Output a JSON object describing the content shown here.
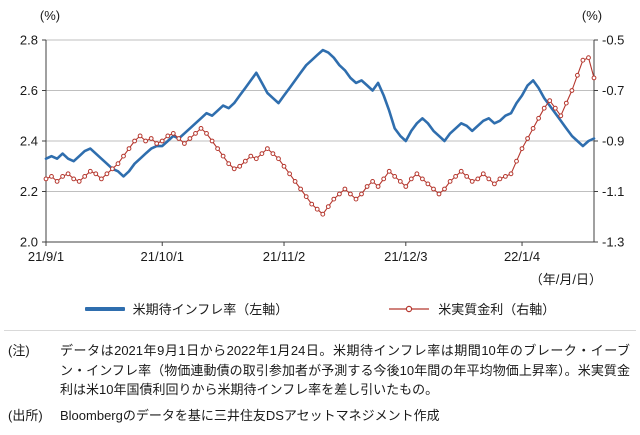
{
  "chart_data": {
    "type": "line",
    "x_unit_label": "（年/月/日）",
    "x_tick_labels": [
      "21/9/1",
      "21/10/1",
      "21/11/2",
      "21/12/3",
      "22/1/4"
    ],
    "x_tick_indices": [
      0,
      21,
      43,
      65,
      86
    ],
    "left_axis": {
      "unit": "(%)",
      "min": 2.0,
      "max": 2.8,
      "ticks": [
        2.0,
        2.2,
        2.4,
        2.6,
        2.8
      ]
    },
    "right_axis": {
      "unit": "(%)",
      "min": -1.3,
      "max": -0.5,
      "ticks": [
        -1.3,
        -1.1,
        -0.9,
        -0.7,
        -0.5
      ]
    },
    "grid": "horizontal",
    "legend_position": "bottom",
    "series": [
      {
        "name": "米期待インフレ率（左軸）",
        "axis": "left",
        "color": "#2f6eae",
        "style": "solid-thick",
        "values": [
          2.33,
          2.34,
          2.33,
          2.35,
          2.33,
          2.32,
          2.34,
          2.36,
          2.37,
          2.35,
          2.33,
          2.31,
          2.29,
          2.28,
          2.26,
          2.28,
          2.31,
          2.33,
          2.35,
          2.37,
          2.38,
          2.38,
          2.4,
          2.42,
          2.41,
          2.43,
          2.45,
          2.47,
          2.49,
          2.51,
          2.5,
          2.52,
          2.54,
          2.53,
          2.55,
          2.58,
          2.61,
          2.64,
          2.67,
          2.63,
          2.59,
          2.57,
          2.55,
          2.58,
          2.61,
          2.64,
          2.67,
          2.7,
          2.72,
          2.74,
          2.76,
          2.75,
          2.73,
          2.7,
          2.68,
          2.65,
          2.63,
          2.64,
          2.62,
          2.6,
          2.63,
          2.58,
          2.52,
          2.45,
          2.42,
          2.4,
          2.44,
          2.47,
          2.49,
          2.47,
          2.44,
          2.42,
          2.4,
          2.43,
          2.45,
          2.47,
          2.46,
          2.44,
          2.46,
          2.48,
          2.49,
          2.47,
          2.48,
          2.5,
          2.51,
          2.55,
          2.58,
          2.62,
          2.64,
          2.61,
          2.57,
          2.54,
          2.51,
          2.48,
          2.45,
          2.42,
          2.4,
          2.38,
          2.4,
          2.41
        ]
      },
      {
        "name": "米実質金利（右軸）",
        "axis": "right",
        "color": "#b5372e",
        "style": "line-circle-markers",
        "values": [
          -1.05,
          -1.04,
          -1.06,
          -1.04,
          -1.03,
          -1.05,
          -1.06,
          -1.04,
          -1.02,
          -1.03,
          -1.05,
          -1.03,
          -1.01,
          -0.99,
          -0.96,
          -0.93,
          -0.9,
          -0.88,
          -0.9,
          -0.89,
          -0.91,
          -0.9,
          -0.88,
          -0.87,
          -0.89,
          -0.91,
          -0.89,
          -0.87,
          -0.85,
          -0.87,
          -0.9,
          -0.93,
          -0.96,
          -0.99,
          -1.01,
          -1.0,
          -0.98,
          -0.96,
          -0.97,
          -0.95,
          -0.93,
          -0.95,
          -0.97,
          -1.0,
          -1.03,
          -1.06,
          -1.09,
          -1.12,
          -1.15,
          -1.17,
          -1.19,
          -1.16,
          -1.13,
          -1.11,
          -1.09,
          -1.11,
          -1.13,
          -1.11,
          -1.08,
          -1.06,
          -1.08,
          -1.05,
          -1.02,
          -1.04,
          -1.06,
          -1.08,
          -1.05,
          -1.03,
          -1.05,
          -1.07,
          -1.09,
          -1.11,
          -1.09,
          -1.06,
          -1.04,
          -1.02,
          -1.04,
          -1.06,
          -1.05,
          -1.03,
          -1.05,
          -1.07,
          -1.05,
          -1.04,
          -1.03,
          -0.98,
          -0.93,
          -0.89,
          -0.85,
          -0.81,
          -0.77,
          -0.74,
          -0.77,
          -0.8,
          -0.75,
          -0.7,
          -0.64,
          -0.58,
          -0.57,
          -0.65
        ]
      }
    ]
  },
  "legend": {
    "items": [
      {
        "label": "米期待インフレ率（左軸）"
      },
      {
        "label": "米実質金利（右軸）"
      }
    ]
  },
  "notes": {
    "note_label": "(注)",
    "note_text": "データは2021年9月1日から2022年1月24日。米期待インフレ率は期間10年のブレーク・イーブン・インフレ率（物価連動債の取引参加者が予測する今後10年間の年平均物価上昇率）。米実質金利は米10年国債利回りから米期待インフレ率を差し引いたもの。",
    "source_label": "(出所)",
    "source_text": "Bloombergのデータを基に三井住友DSアセットマネジメント作成"
  },
  "colors": {
    "breakeven_line": "#2f6eae",
    "real_yield_line": "#b5372e",
    "gridline": "#bfbfbf",
    "axis": "#404040"
  }
}
